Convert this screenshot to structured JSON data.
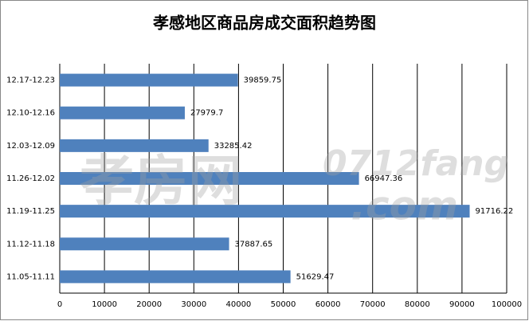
{
  "chart_data": {
    "type": "bar",
    "orientation": "horizontal",
    "title": "孝感地区商品房成交面积趋势图",
    "categories": [
      "12.17-12.23",
      "12.10-12.16",
      "12.03-12.09",
      "11.26-12.02",
      "11.19-11.25",
      "11.12-11.18",
      "11.05-11.11"
    ],
    "values": [
      39859.75,
      27979.7,
      33285.42,
      66947.36,
      91716.22,
      37887.65,
      51629.47
    ],
    "color": "#4f81bd",
    "xlim": [
      0,
      100000
    ],
    "xticks": [
      0,
      10000,
      20000,
      30000,
      40000,
      50000,
      60000,
      70000,
      80000,
      90000,
      100000
    ],
    "grid": true,
    "watermark": [
      "孝房网",
      "0712fang",
      ".com"
    ]
  }
}
